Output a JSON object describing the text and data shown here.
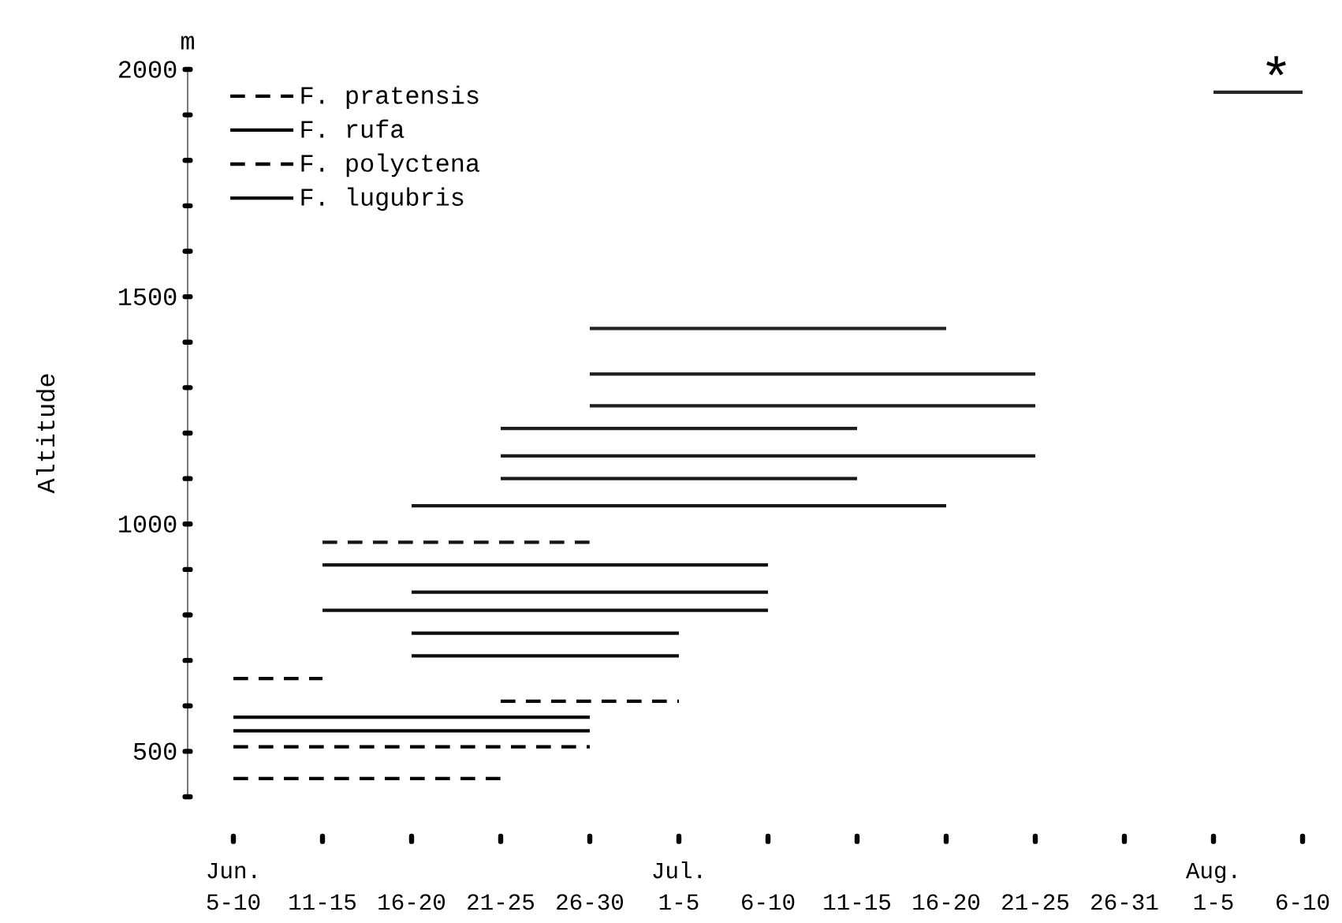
{
  "chart_data": {
    "type": "line",
    "ylabel": "Altitude",
    "legend": "top left",
    "marker": "none",
    "categories": [
      "Jun. 5-10",
      "11-15",
      "16-20",
      "21-25",
      "26-30",
      "Jul. 1-5",
      "6-10",
      "11-15",
      "16-20",
      "21-25",
      "26-31",
      "Aug. 1-5",
      "6-10"
    ],
    "ylim": [
      400,
      2000
    ],
    "yticks": [
      {
        "value": 400,
        "label": null
      },
      500,
      {
        "value": 600,
        "label": null
      },
      {
        "value": 700,
        "label": null
      },
      {
        "value": 800,
        "label": null
      },
      {
        "value": 900,
        "label": null
      },
      1000,
      {
        "value": 1100,
        "label": null
      },
      {
        "value": 1200,
        "label": null
      },
      {
        "value": 1300,
        "label": null
      },
      {
        "value": 1400,
        "label": null
      },
      1500,
      {
        "value": 1600,
        "label": null
      },
      {
        "value": 1700,
        "label": null
      },
      {
        "value": 1800,
        "label": null
      },
      {
        "value": 1900,
        "label": null
      },
      2000
    ],
    "annotations": [
      "m",
      "*"
    ],
    "series": [
      {
        "name": "F. pratensis",
        "color": "#000000",
        "line_style": "dashed",
        "values": [
          440,
          440,
          440,
          440,
          null,
          null,
          null,
          null,
          null,
          null,
          null,
          null,
          null
        ]
      },
      {
        "color": "#020202",
        "line_style": "dashed",
        "values": [
          510,
          510,
          510,
          510,
          510,
          null,
          null,
          null,
          null,
          null,
          null,
          null,
          null
        ]
      },
      {
        "name": "F. rufa",
        "color": "#040404",
        "line_style": "solid",
        "values": [
          545,
          545,
          545,
          545,
          545,
          null,
          null,
          null,
          null,
          null,
          null,
          null,
          null
        ]
      },
      {
        "color": "#060606",
        "line_style": "solid",
        "values": [
          575,
          575,
          575,
          575,
          575,
          null,
          null,
          null,
          null,
          null,
          null,
          null,
          null
        ]
      },
      {
        "color": "#080808",
        "line_style": "dashed",
        "values": [
          null,
          null,
          null,
          610,
          610,
          610,
          null,
          null,
          null,
          null,
          null,
          null,
          null
        ]
      },
      {
        "name": "F. polyctena",
        "color": "#0a0a0a",
        "line_style": "dashed",
        "values": [
          660,
          660,
          null,
          null,
          null,
          null,
          null,
          null,
          null,
          null,
          null,
          null,
          null
        ]
      },
      {
        "color": "#0c0c0c",
        "line_style": "solid",
        "values": [
          null,
          null,
          710,
          710,
          710,
          710,
          null,
          null,
          null,
          null,
          null,
          null,
          null
        ]
      },
      {
        "name": "F. lugubris",
        "color": "#0e0e0e",
        "line_style": "solid",
        "values": [
          null,
          null,
          760,
          760,
          760,
          760,
          null,
          null,
          null,
          null,
          null,
          null,
          null
        ]
      },
      {
        "color": "#101010",
        "line_style": "solid",
        "values": [
          null,
          810,
          810,
          810,
          810,
          810,
          810,
          null,
          null,
          null,
          null,
          null,
          null
        ]
      },
      {
        "color": "#121212",
        "line_style": "solid",
        "values": [
          null,
          null,
          850,
          850,
          850,
          850,
          850,
          null,
          null,
          null,
          null,
          null,
          null
        ]
      },
      {
        "color": "#141414",
        "line_style": "solid",
        "values": [
          null,
          910,
          910,
          910,
          910,
          910,
          910,
          null,
          null,
          null,
          null,
          null,
          null
        ]
      },
      {
        "color": "#161616",
        "line_style": "dashed",
        "values": [
          null,
          960,
          960,
          960,
          960,
          null,
          null,
          null,
          null,
          null,
          null,
          null,
          null
        ]
      },
      {
        "color": "#181818",
        "line_style": "solid",
        "values": [
          null,
          null,
          1040,
          1040,
          1040,
          1040,
          1040,
          1040,
          1040,
          null,
          null,
          null,
          null
        ]
      },
      {
        "color": "#1a1a1a",
        "line_style": "solid",
        "values": [
          null,
          null,
          null,
          1100,
          1100,
          1100,
          1100,
          1100,
          null,
          null,
          null,
          null,
          null
        ]
      },
      {
        "color": "#1c1c1c",
        "line_style": "solid",
        "values": [
          null,
          null,
          null,
          1150,
          1150,
          1150,
          1150,
          1150,
          1150,
          1150,
          null,
          null,
          null
        ]
      },
      {
        "color": "#1e1e1e",
        "line_style": "solid",
        "values": [
          null,
          null,
          null,
          1210,
          1210,
          1210,
          1210,
          1210,
          null,
          null,
          null,
          null,
          null
        ]
      },
      {
        "color": "#202020",
        "line_style": "solid",
        "values": [
          null,
          null,
          null,
          null,
          1260,
          1260,
          1260,
          1260,
          1260,
          1260,
          null,
          null,
          null
        ]
      },
      {
        "color": "#222222",
        "line_style": "solid",
        "values": [
          null,
          null,
          null,
          null,
          1330,
          1330,
          1330,
          1330,
          1330,
          1330,
          null,
          null,
          null
        ]
      },
      {
        "color": "#242424",
        "line_style": "solid",
        "values": [
          null,
          null,
          null,
          null,
          1430,
          1430,
          1430,
          1430,
          1430,
          null,
          null,
          null,
          null
        ]
      },
      {
        "color": "#262626",
        "line_style": "solid",
        "values": [
          null,
          null,
          null,
          null,
          null,
          null,
          null,
          null,
          null,
          null,
          null,
          1950,
          1950
        ]
      }
    ]
  }
}
